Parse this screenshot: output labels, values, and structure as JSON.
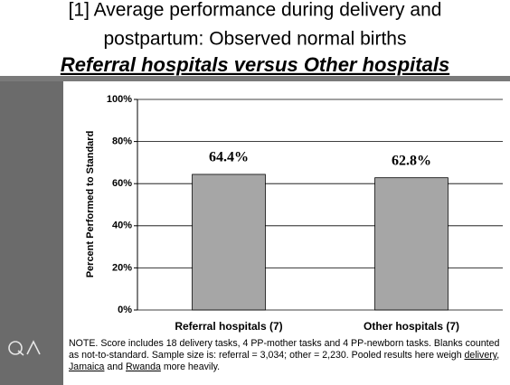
{
  "chart_data": {
    "type": "bar",
    "title": [
      "[1] Average performance during delivery and",
      "postpartum: Observed normal births"
    ],
    "subtitle": "Referral hospitals versus Other hospitals",
    "y_label": "Percent Performed to Standard",
    "categories": [
      "Referral hospitals (7)",
      "Other hospitals (7)"
    ],
    "values": [
      64.4,
      62.8
    ],
    "value_labels": [
      "64.4%",
      "62.8%"
    ],
    "color": "#a6a6a6",
    "ylim": [
      0,
      100
    ],
    "yticks": [
      {
        "value": 0,
        "label": "0%"
      },
      {
        "value": 20,
        "label": "20%"
      },
      {
        "value": 40,
        "label": "40%"
      },
      {
        "value": 60,
        "label": "60%"
      },
      {
        "value": 80,
        "label": "80%"
      },
      {
        "value": 100,
        "label": "100%"
      }
    ],
    "grid": true,
    "note": [
      {
        "text": "NOTE.  Score includes 18 delivery tasks, 4 PP-mother tasks and 4 PP-newborn tasks. Blanks counted as not-to-standard. Sample size is: referral  = 3,034; other = 2,230. Pooled results here weigh "
      },
      {
        "text": "delivery",
        "underline": true
      },
      {
        "text": ", "
      },
      {
        "text": "Jamaica",
        "underline": true
      },
      {
        "text": " and "
      },
      {
        "text": "Rwanda",
        "underline": true
      },
      {
        "text": " more heavily."
      }
    ]
  }
}
